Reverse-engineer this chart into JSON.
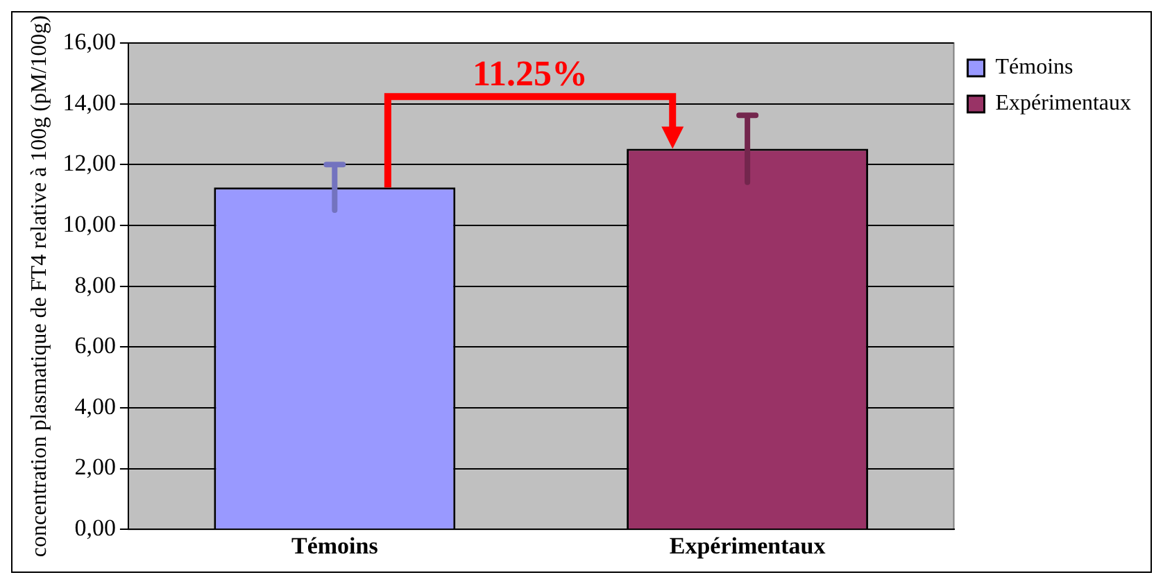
{
  "chart_data": {
    "type": "bar",
    "ylabel": "concentration plasmatique de FT4 relative à 100g (pM/100g)",
    "categories": [
      "Témoins",
      "Expérimentaux"
    ],
    "series": [
      {
        "name": "Témoins",
        "color": "#9999ff",
        "values": [
          11.25,
          null
        ],
        "errors": [
          0.75,
          null
        ]
      },
      {
        "name": "Expérimentaux",
        "color": "#993366",
        "values": [
          null,
          12.52
        ],
        "errors": [
          null,
          1.1
        ]
      }
    ],
    "ylim": [
      0,
      16
    ],
    "yticks": [
      {
        "value": 0,
        "label": "0,00"
      },
      {
        "value": 2,
        "label": "2,00"
      },
      {
        "value": 4,
        "label": "4,00"
      },
      {
        "value": 6,
        "label": "6,00"
      },
      {
        "value": 8,
        "label": "8,00"
      },
      {
        "value": 10,
        "label": "10,00"
      },
      {
        "value": 12,
        "label": "12,00"
      },
      {
        "value": 14,
        "label": "14,00"
      },
      {
        "value": 16,
        "label": "16,00"
      }
    ],
    "grid": "y",
    "legend": "top right",
    "annotations": [
      "11.25%"
    ]
  }
}
